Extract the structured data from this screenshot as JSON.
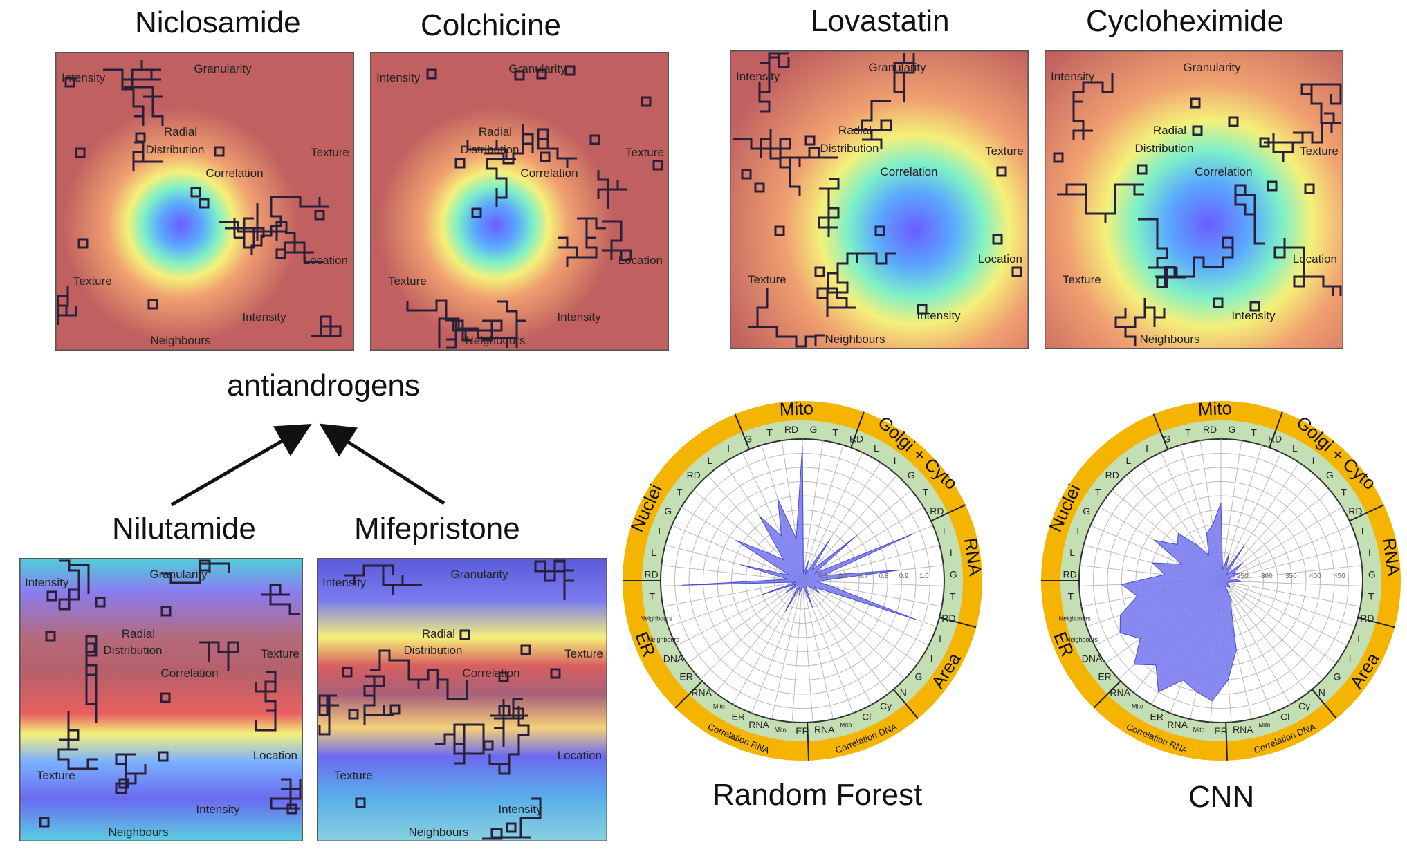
{
  "titles": {
    "niclosamide": "Niclosamide",
    "colchicine": "Colchicine",
    "lovastatin": "Lovastatin",
    "cycloheximide": "Cycloheximide",
    "nilutamide": "Nilutamide",
    "mifepristone": "Mifepristone",
    "antiandrogens": "antiandrogens",
    "random_forest": "Random Forest",
    "cnn": "CNN"
  },
  "map_labels": {
    "intensity_top": "Intensity",
    "granularity": "Granularity",
    "radial": "Radial",
    "distribution": "Distribution",
    "texture_right": "Texture",
    "correlation": "Correlation",
    "location": "Location",
    "texture_left": "Texture",
    "intensity_bottom": "Intensity",
    "neighbours": "Neighbours"
  },
  "heatmaps": [
    {
      "name": "niclosamide-map",
      "hot": "#c06060",
      "cold_center": [
        0.42,
        0.58
      ],
      "cold_r": 0.18
    },
    {
      "name": "colchicine-map",
      "hot": "#c06060",
      "cold_center": [
        0.42,
        0.58
      ],
      "cold_r": 0.18
    },
    {
      "name": "lovastatin-map",
      "hot": "#c06060",
      "cold_center": [
        0.62,
        0.6
      ],
      "cold_r": 0.32
    },
    {
      "name": "cycloheximide-map",
      "hot": "#c06060",
      "cold_center": [
        0.55,
        0.58
      ],
      "cold_r": 0.35
    },
    {
      "name": "nilutamide-map",
      "hot": "#b55a6a",
      "cold_center": [
        0.5,
        0.5
      ],
      "cold_r": 0.5
    },
    {
      "name": "mifepristone-map",
      "hot": "#b55a6a",
      "cold_center": [
        0.5,
        0.5
      ],
      "cold_r": 0.5
    }
  ],
  "radar": {
    "outer_sections": [
      "Mito",
      "Golgi + Cyto",
      "RNA",
      "Area",
      "Correlation DNA",
      "Correlation RNA",
      "ER",
      "Nuclei"
    ],
    "inner_labels": [
      "G",
      "T",
      "RD",
      "L",
      "I",
      "G",
      "T",
      "RD",
      "L",
      "I",
      "G",
      "T",
      "RD",
      "L",
      "I",
      "G",
      "N",
      "Cy",
      "Cl",
      "Mito",
      "RNA",
      "ER",
      "Mito",
      "RNA",
      "ER",
      "Mito",
      "RNA",
      "ER",
      "DNA",
      "Neighbours",
      "Neighbours",
      "T",
      "RD",
      "L",
      "I",
      "G",
      "T",
      "RD",
      "L",
      "I",
      "G",
      "T",
      "RD"
    ],
    "rf_scale": [
      "0.5",
      "0.6",
      "0.7",
      "0.8",
      "0.9",
      "1.0"
    ],
    "cnn_scale": [
      "250",
      "300",
      "350",
      "400",
      "450"
    ],
    "fill_color": "#7b7cf0",
    "ring_color": "#f5b400",
    "inner_ring_color": "#c5dfb5"
  }
}
